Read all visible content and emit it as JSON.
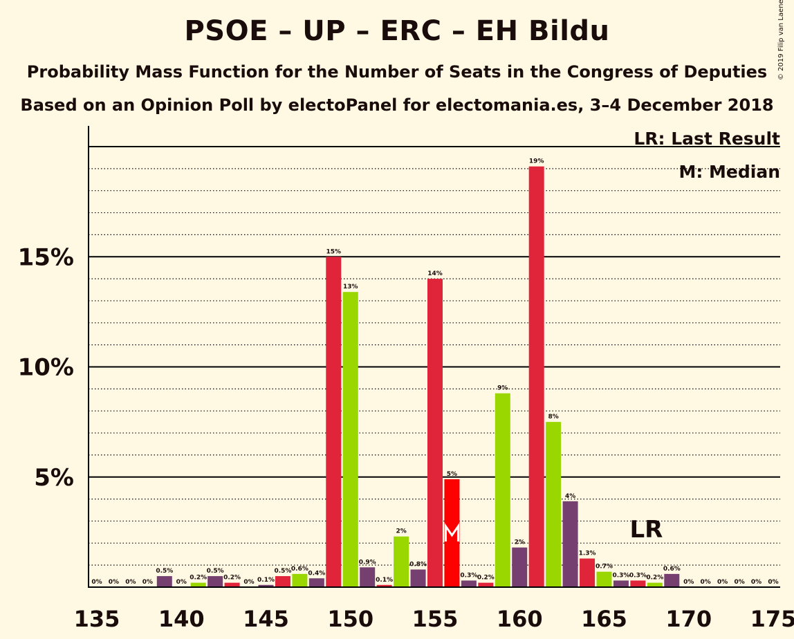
{
  "header": {
    "title": "PSOE – UP – ERC – EH Bildu",
    "subtitle": "Probability Mass Function for the Number of Seats in the Congress of Deputies",
    "subtitle2": "Based on an Opinion Poll by electoPanel for electomania.es, 3–4 December 2018",
    "copyright": "© 2019 Filip van Laenen"
  },
  "legend": {
    "lr": "LR: Last Result",
    "m": "M: Median"
  },
  "chart_data": {
    "type": "bar",
    "x": [
      135,
      136,
      137,
      138,
      139,
      140,
      141,
      142,
      143,
      144,
      145,
      146,
      147,
      148,
      149,
      150,
      151,
      152,
      153,
      154,
      155,
      156,
      157,
      158,
      159,
      160,
      161,
      162,
      163,
      164,
      165,
      166,
      167,
      168,
      169,
      170,
      171,
      172,
      173,
      174,
      175
    ],
    "values": [
      0,
      0,
      0,
      0,
      0.5,
      0,
      0.2,
      0.5,
      0.2,
      0,
      0.1,
      0.5,
      0.6,
      0.4,
      15,
      13.4,
      0.9,
      0.1,
      2.3,
      0.8,
      14,
      4.9,
      0.3,
      0.2,
      8.8,
      1.8,
      19.1,
      7.5,
      3.9,
      1.3,
      0.7,
      0.3,
      0.3,
      0.2,
      0.6,
      0,
      0,
      0,
      0,
      0,
      0
    ],
    "labels": [
      "0%",
      "0%",
      "0%",
      "0%",
      "0.5%",
      "0%",
      "0.2%",
      "0.5%",
      "0.2%",
      "0%",
      "0.1%",
      "0.5%",
      "0.6%",
      "0.4%",
      "15%",
      "13%",
      "0.9%",
      "0.1%",
      "2%",
      "0.8%",
      "14%",
      "5%",
      "0.3%",
      "0.2%",
      "9%",
      "2%",
      "19%",
      "8%",
      "4%",
      "1.3%",
      "0.7%",
      "0.3%",
      "0.3%",
      "0.2%",
      "0.6%",
      "0%",
      "0%",
      "0%",
      "0%",
      "0%",
      "0%"
    ],
    "xticks": [
      "135",
      "140",
      "145",
      "150",
      "155",
      "160",
      "165",
      "170",
      "175"
    ],
    "yticks": [
      "5%",
      "10%",
      "15%"
    ],
    "ylim": [
      0,
      20
    ],
    "last_result_seat": 167,
    "last_result_label": "LR",
    "median_seat": 156,
    "median_label": "M",
    "colors": {
      "purple": "#75406f",
      "red": "#e0243a",
      "green": "#9ad600",
      "median_bar": "#fd0000"
    },
    "bar_color_cycle": [
      "green",
      "purple",
      "red"
    ]
  }
}
